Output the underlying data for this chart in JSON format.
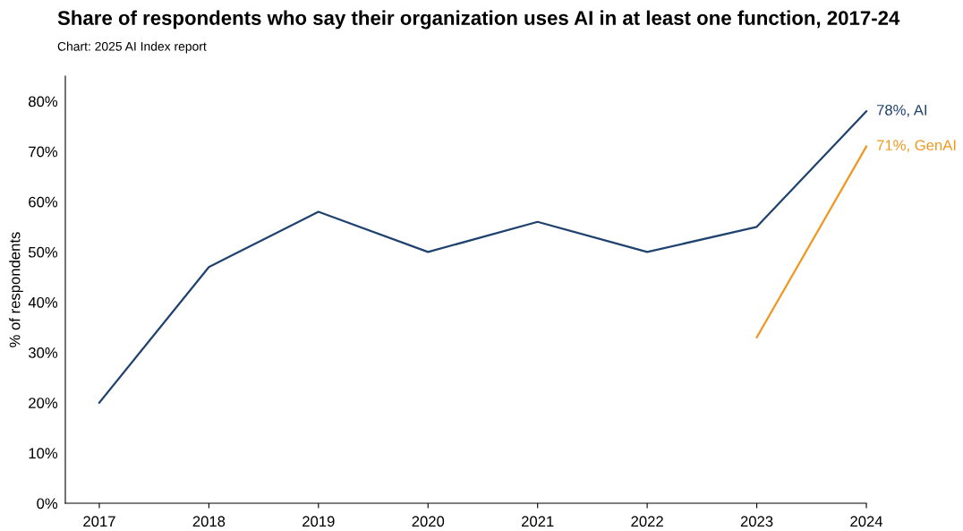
{
  "chart_data": {
    "type": "line",
    "title": "Share of respondents who say their organization uses AI in at least one function, 2017-24",
    "subtitle": "Chart: 2025 AI Index report",
    "ylabel": "% of respondents",
    "x": [
      2017,
      2018,
      2019,
      2020,
      2021,
      2022,
      2023,
      2024
    ],
    "series": [
      {
        "color": "#1f426e",
        "values": [
          20,
          47,
          58,
          50,
          56,
          50,
          55,
          78
        ],
        "value_labels": [
          null,
          null,
          null,
          null,
          null,
          null,
          null,
          "78%, AI"
        ]
      },
      {
        "color": "#f0961e",
        "x": [
          2023,
          2024
        ],
        "values": [
          33,
          71
        ],
        "value_labels": [
          null,
          "71%, GenAI"
        ]
      }
    ],
    "xlim": [
      2016.69,
      2024
    ],
    "xticks": [
      2017,
      2018,
      2019,
      2020,
      2021,
      2022,
      2023,
      2024
    ],
    "ylim": [
      0,
      85
    ],
    "yticks": [
      {
        "value": 0,
        "label": "0%"
      },
      {
        "value": 10,
        "label": "10%"
      },
      {
        "value": 20,
        "label": "20%"
      },
      {
        "value": 30,
        "label": "30%"
      },
      {
        "value": 40,
        "label": "40%"
      },
      {
        "value": 50,
        "label": "50%"
      },
      {
        "value": 60,
        "label": "60%"
      },
      {
        "value": 70,
        "label": "70%"
      },
      {
        "value": 80,
        "label": "80%"
      }
    ],
    "grid": false,
    "legend": false,
    "marker": "none",
    "line_style": "solid"
  }
}
